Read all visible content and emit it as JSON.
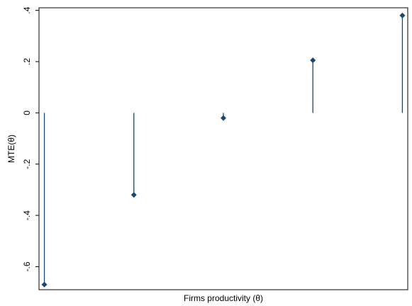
{
  "chart_data": {
    "type": "scatter",
    "title": "",
    "xlabel": "Firms productivity (θ)",
    "ylabel": "MTE(θ)",
    "ylim": [
      -0.69,
      0.41
    ],
    "yticks": [
      {
        "value": 0.4,
        "label": ".4"
      },
      {
        "value": 0.2,
        "label": ".2"
      },
      {
        "value": 0.0,
        "label": "0"
      },
      {
        "value": -0.2,
        "label": "-.2"
      },
      {
        "value": -0.4,
        "label": "-.4"
      },
      {
        "value": -0.6,
        "label": "-.6"
      }
    ],
    "baseline": 0,
    "x": [
      1,
      2,
      3,
      4,
      5
    ],
    "xlim": [
      0.94,
      5.06
    ],
    "series": [
      {
        "values": [
          -0.67,
          -0.32,
          -0.02,
          0.205,
          0.38
        ]
      }
    ],
    "grid": false,
    "legend": "none",
    "marker": "diamond",
    "spike_to_baseline": true,
    "colors": {
      "marker": "#1a476f",
      "axis": "#000000",
      "background": "#ffffff"
    }
  }
}
